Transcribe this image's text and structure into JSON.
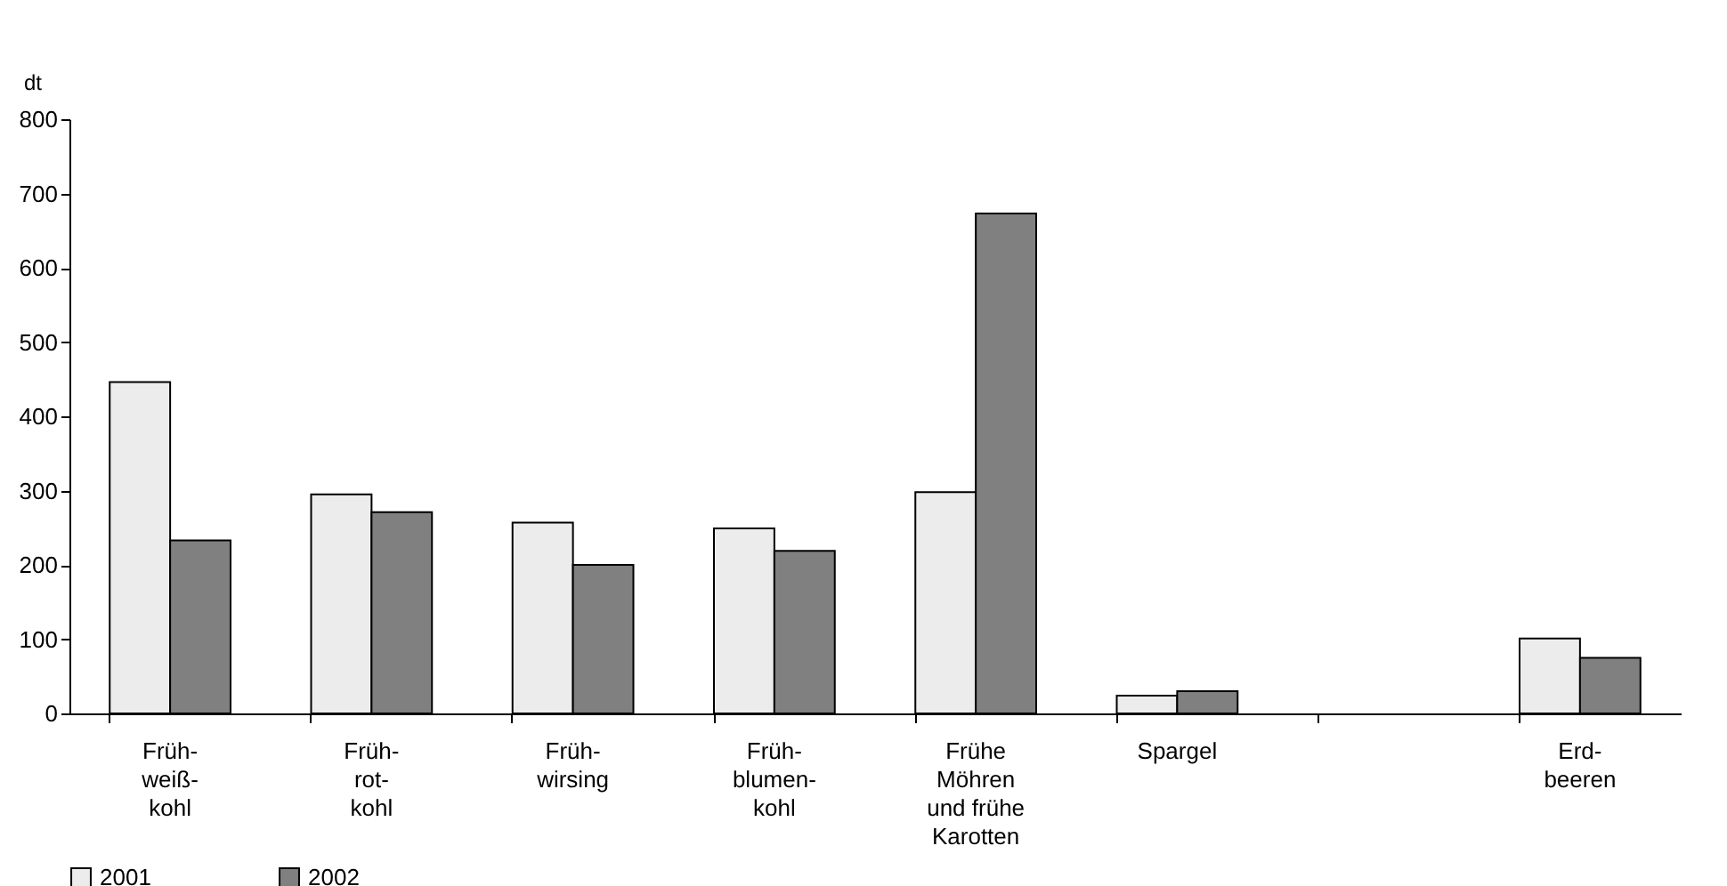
{
  "chart_data": {
    "type": "bar",
    "ylabel": "dt",
    "categories": [
      "Früh-\nweiß-\nkohl",
      "Früh-\nrot-\nkohl",
      "Früh-\nwirsing",
      "Früh-\nblumen-\nkohl",
      "Frühe\nMöhren\nund frühe\nKarotten",
      "Spargel",
      null,
      "Erd-\nbeeren"
    ],
    "series": [
      {
        "name": "2001",
        "color": "#ececec",
        "values": [
          446,
          295,
          257,
          249,
          298,
          24,
          null,
          101
        ]
      },
      {
        "name": "2002",
        "color": "#808080",
        "values": [
          233,
          271,
          200,
          219,
          673,
          30,
          null,
          75
        ]
      }
    ],
    "ylim": [
      0,
      800
    ],
    "yticks": [
      0,
      100,
      200,
      300,
      400,
      500,
      600,
      700,
      800
    ],
    "grid": false,
    "legend": "bottom"
  }
}
